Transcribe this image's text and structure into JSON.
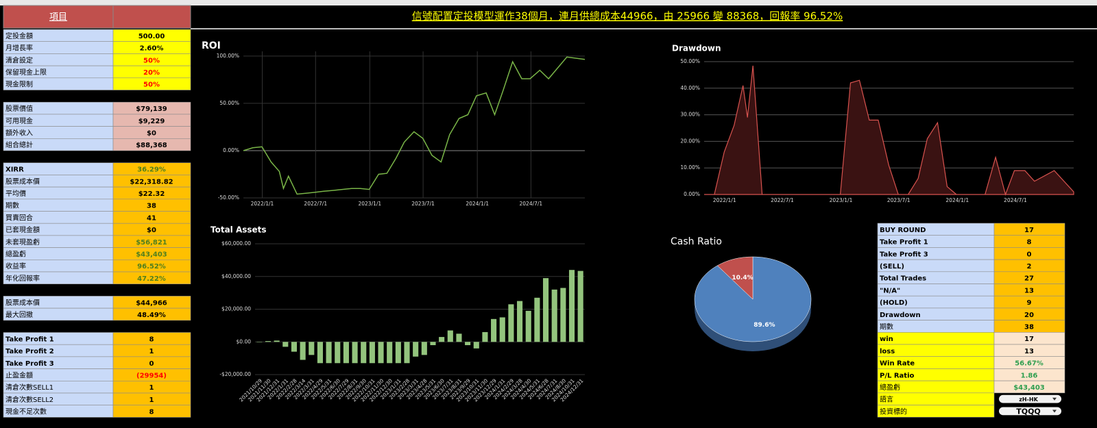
{
  "header": {
    "label": "項目",
    "banner": "信號配置定投模型運作38個月，連月供總成本44966，由 25966 變 88368，回報率 96.52%"
  },
  "left_table": {
    "label_fill": "#c9daf8",
    "sections": [
      {
        "fill": "#ffff00",
        "rows": [
          {
            "label": "定投金額",
            "value": "500.00"
          },
          {
            "label": "月增長率",
            "value": "2.60%"
          },
          {
            "label": "清倉設定",
            "value": "50%",
            "color": "#ff0000"
          },
          {
            "label": "保留現金上限",
            "value": "20%",
            "color": "#ff0000"
          },
          {
            "label": "現金限制",
            "value": "50%",
            "color": "#ff0000"
          }
        ]
      },
      {
        "fill": "#e6b8af",
        "rows": [
          {
            "label": "股票價值",
            "value": "$79,139"
          },
          {
            "label": "可用現金",
            "value": "$9,229"
          },
          {
            "label": "額外收入",
            "value": "$0"
          },
          {
            "label": "組合總計",
            "value": "$88,368"
          }
        ]
      },
      {
        "fill": "#ffc000",
        "rows": [
          {
            "label": "XIRR",
            "value": "36.29%",
            "color": "#4f7f1f"
          },
          {
            "label": "股票成本價",
            "value": "$22,318.82"
          },
          {
            "label": "平均價",
            "value": "$22.32"
          },
          {
            "label": "期數",
            "value": "38"
          },
          {
            "label": "買賣回合",
            "value": "41"
          },
          {
            "label": "已套現金額",
            "value": "$0"
          },
          {
            "label": "未套現盈虧",
            "value": "$56,821",
            "color": "#4f7f1f"
          },
          {
            "label": "總盈虧",
            "value": "$43,403",
            "color": "#4f7f1f"
          },
          {
            "label": "收益率",
            "value": "96.52%",
            "color": "#4f7f1f"
          },
          {
            "label": "年化回報率",
            "value": "47.22%",
            "color": "#4f7f1f"
          }
        ]
      },
      {
        "fill": "#ffc000",
        "rows": [
          {
            "label": "股票成本價",
            "value": "$44,966"
          },
          {
            "label": "最大回撤",
            "value": "48.49%"
          }
        ]
      },
      {
        "fill": "#ffc000",
        "rows": [
          {
            "label": "Take Profit 1",
            "value": "8"
          },
          {
            "label": "Take Profit 2",
            "value": "1"
          },
          {
            "label": "Take Profit 3",
            "value": "0"
          },
          {
            "label": "止盈金額",
            "value": "(29954)",
            "color": "#ff0000"
          },
          {
            "label": "清倉次數SELL1",
            "value": "1"
          },
          {
            "label": "清倉次數SELL2",
            "value": "1"
          },
          {
            "label": "現金不足次數",
            "value": "8"
          }
        ]
      }
    ]
  },
  "right_table": {
    "groups": [
      {
        "label_fill": "#c9daf8",
        "fill": "#ffc000",
        "rows": [
          {
            "label": "BUY ROUND",
            "value": "17"
          },
          {
            "label": "Take Profit 1",
            "value": "8"
          },
          {
            "label": "Take Profit 3",
            "value": "0"
          },
          {
            "label": "(SELL)",
            "value": "2"
          },
          {
            "label": "Total Trades",
            "value": "27"
          },
          {
            "label": "\"N/A\"",
            "value": "13"
          },
          {
            "label": "(HOLD)",
            "value": "9"
          },
          {
            "label": "Drawdown",
            "value": "20"
          },
          {
            "label": "期數",
            "value": "38"
          }
        ]
      },
      {
        "label_fill": "#ffff00",
        "fill": "#fce5cd",
        "rows": [
          {
            "label": "win",
            "value": "17"
          },
          {
            "label": "loss",
            "value": "13"
          },
          {
            "label": "Win Rate",
            "value": "56.67%",
            "color": "#2e9e4f"
          },
          {
            "label": "P/L Ratio",
            "value": "1.86",
            "color": "#2e9e4f"
          },
          {
            "label": "總盈虧",
            "value": "$43,403",
            "color": "#2e9e4f"
          }
        ]
      }
    ]
  },
  "controls": [
    {
      "label": "語言",
      "value": "zH-HK"
    },
    {
      "label": "投資標的",
      "value": "TQQQ"
    }
  ],
  "chart_data": [
    {
      "type": "line",
      "title": "ROI",
      "color": "#7ab648",
      "grid": true,
      "x": [
        "2021/10/29",
        "2021/11/30",
        "2021/12/31",
        "2022/1/31",
        "2022/2/28",
        "2022/3/14",
        "2022/3/31",
        "2022/4/29",
        "2022/5/31",
        "2022/6/30",
        "2022/7/29",
        "2022/8/31",
        "2022/9/30",
        "2022/10/31",
        "2022/11/30",
        "2022/12/30",
        "2023/1/31",
        "2023/2/28",
        "2023/3/31",
        "2023/4/28",
        "2023/5/31",
        "2023/6/30",
        "2023/7/31",
        "2023/8/31",
        "2023/9/29",
        "2023/10/31",
        "2023/11/30",
        "2023/12/29",
        "2024/1/31",
        "2024/2/29",
        "2024/3/28",
        "2024/4/30",
        "2024/5/31",
        "2024/6/28",
        "2024/7/31",
        "2024/8/30",
        "2024/10/31",
        "2024/12/31"
      ],
      "values": [
        0,
        3,
        4,
        -12,
        -22,
        -40,
        -27,
        -46,
        -45,
        -44,
        -43,
        -42,
        -41,
        -40,
        -40,
        -41,
        -25,
        -24,
        -8,
        9,
        20,
        13,
        -5,
        -12,
        17,
        34,
        38,
        58,
        61,
        38,
        63,
        94,
        76,
        76,
        85,
        76,
        99,
        96.52
      ],
      "xlim": [
        "2021/10/29",
        "2024/12/31"
      ],
      "xticks": [
        "2022/1/1",
        "2022/7/1",
        "2023/1/1",
        "2023/7/1",
        "2024/1/1",
        "2024/7/1"
      ],
      "ylim": [
        -50,
        105
      ],
      "yticks": [
        {
          "value": -50,
          "label": "-50.00%"
        },
        {
          "value": 0,
          "label": "0.00%"
        },
        {
          "value": 50,
          "label": "50.00%"
        },
        {
          "value": 100,
          "label": "100.00%"
        }
      ]
    },
    {
      "type": "area",
      "title": "Drawdown",
      "color": "#d9534f",
      "fill": "#3a1212",
      "grid": true,
      "x": [
        "2021/10/29",
        "2021/11/30",
        "2021/12/31",
        "2022/1/31",
        "2022/2/28",
        "2022/3/14",
        "2022/3/31",
        "2022/4/29",
        "2022/5/31",
        "2022/6/30",
        "2022/7/29",
        "2022/8/31",
        "2022/9/30",
        "2022/10/31",
        "2022/11/30",
        "2022/12/30",
        "2023/1/31",
        "2023/2/28",
        "2023/3/31",
        "2023/4/28",
        "2023/5/31",
        "2023/6/30",
        "2023/7/31",
        "2023/8/31",
        "2023/9/29",
        "2023/10/31",
        "2023/11/30",
        "2023/12/29",
        "2024/1/31",
        "2024/2/29",
        "2024/3/28",
        "2024/4/30",
        "2024/5/31",
        "2024/6/28",
        "2024/7/31",
        "2024/8/30",
        "2024/10/31",
        "2024/12/31"
      ],
      "values": [
        0,
        0,
        16,
        26,
        41,
        29,
        48.49,
        0,
        0,
        0,
        0,
        0,
        0,
        0,
        0,
        0,
        42,
        43,
        28,
        28,
        11,
        0,
        0,
        6,
        21,
        27,
        3,
        0,
        0,
        0,
        0,
        14,
        0,
        9,
        9,
        5,
        9,
        1
      ],
      "xlim": [
        "2021/10/29",
        "2024/12/31"
      ],
      "xticks": [
        "2022/1/1",
        "2022/7/1",
        "2023/1/1",
        "2023/7/1",
        "2024/1/1",
        "2024/7/1"
      ],
      "ylim": [
        0,
        50
      ],
      "yticks": [
        {
          "value": 0,
          "label": "0.00%"
        },
        {
          "value": 10,
          "label": "10.00%"
        },
        {
          "value": 20,
          "label": "20.00%"
        },
        {
          "value": 30,
          "label": "30.00%"
        },
        {
          "value": 40,
          "label": "40.00%"
        },
        {
          "value": 50,
          "label": "50.00%"
        }
      ]
    },
    {
      "type": "bar",
      "title": "Total Assets",
      "color": "#93c47d",
      "grid": true,
      "categories": [
        "2021/10/29",
        "2021/11/30",
        "2021/12/31",
        "2022/1/31",
        "2022/2/28",
        "2022/3/14",
        "2022/3/31",
        "2022/4/29",
        "2022/5/31",
        "2022/6/30",
        "2022/7/29",
        "2022/8/31",
        "2022/9/30",
        "2022/10/31",
        "2022/11/30",
        "2022/12/30",
        "2023/1/31",
        "2023/2/28",
        "2023/3/31",
        "2023/4/28",
        "2023/5/31",
        "2023/6/30",
        "2023/7/31",
        "2023/8/31",
        "2023/9/29",
        "2023/10/31",
        "2023/11/30",
        "2023/12/29",
        "2024/1/31",
        "2024/2/29",
        "2024/3/28",
        "2024/4/30",
        "2024/5/31",
        "2024/6/28",
        "2024/7/31",
        "2024/8/30",
        "2024/10/31",
        "2024/12/31"
      ],
      "values": [
        0,
        500,
        800,
        -3000,
        -6000,
        -11000,
        -8000,
        -13000,
        -13000,
        -13000,
        -13000,
        -13000,
        -13000,
        -13000,
        -13000,
        -13000,
        -13000,
        -13000,
        -9000,
        -8000,
        -2000,
        3000,
        7000,
        5000,
        -2000,
        -4000,
        6000,
        14000,
        15000,
        23000,
        25000,
        19000,
        27000,
        39000,
        32000,
        33000,
        44000,
        43403
      ],
      "ylim": [
        -20000,
        60000
      ],
      "yticks": [
        {
          "value": -20000,
          "label": "-$20,000.00"
        },
        {
          "value": 0,
          "label": "$0.00"
        },
        {
          "value": 20000,
          "label": "$20,000.00"
        },
        {
          "value": 40000,
          "label": "$40,000.00"
        },
        {
          "value": 60000,
          "label": "$60,000.00"
        }
      ]
    },
    {
      "type": "pie",
      "title": "Cash Ratio",
      "values": [
        89.6,
        10.4
      ],
      "value_labels": [
        "89.6%",
        "10.4%"
      ],
      "colors": [
        "#4f81bd",
        "#c0504d"
      ],
      "shade": "#2f4f78"
    }
  ]
}
